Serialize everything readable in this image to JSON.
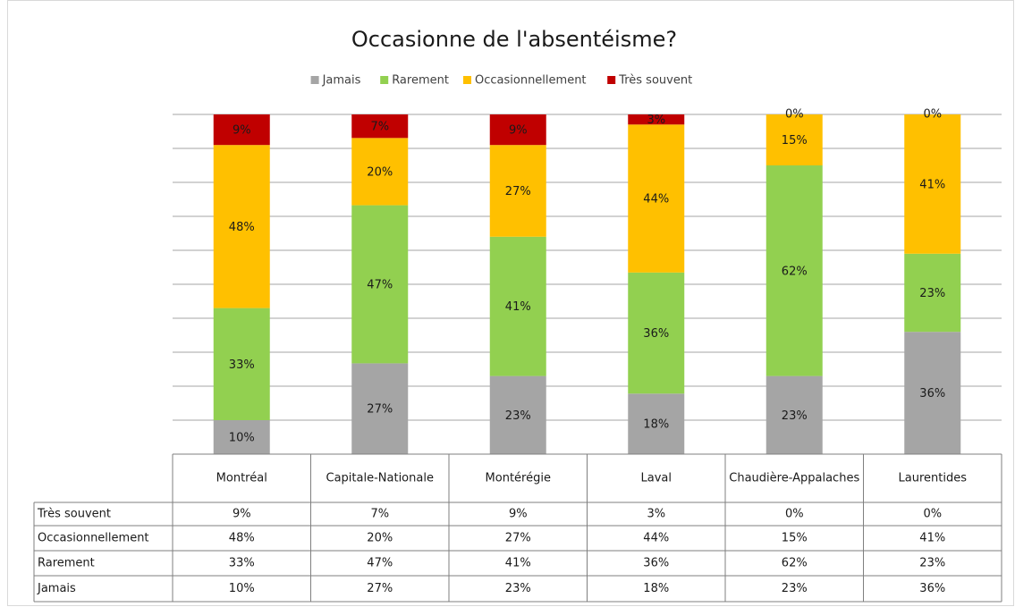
{
  "chart_data": {
    "type": "bar",
    "stacking": "percent",
    "title": "Occasionne de l'absentéisme?",
    "categories": [
      "Montréal",
      "Capitale-Nationale",
      "Montérégie",
      "Laval",
      "Chaudière-Appalaches",
      "Laurentides"
    ],
    "series": [
      {
        "name": "Jamais",
        "color": "#a5a5a5",
        "values": [
          10,
          27,
          23,
          18,
          23,
          36
        ],
        "value_labels": [
          "10%",
          "27%",
          "23%",
          "18%",
          "23%",
          "36%"
        ]
      },
      {
        "name": "Rarement",
        "color": "#92d050",
        "values": [
          33,
          47,
          41,
          36,
          62,
          23
        ],
        "value_labels": [
          "33%",
          "47%",
          "41%",
          "36%",
          "62%",
          "23%"
        ]
      },
      {
        "name": "Occasionnellement",
        "color": "#ffc000",
        "values": [
          48,
          20,
          27,
          44,
          15,
          41
        ],
        "value_labels": [
          "48%",
          "20%",
          "27%",
          "44%",
          "15%",
          "41%"
        ]
      },
      {
        "name": "Très souvent",
        "color": "#c00000",
        "values": [
          9,
          7,
          9,
          3,
          0,
          0
        ],
        "value_labels": [
          "9%",
          "7%",
          "9%",
          "3%",
          "0%",
          "0%"
        ]
      }
    ],
    "ylim": [
      0,
      100
    ],
    "yticks": [
      0,
      10,
      20,
      30,
      40,
      50,
      60,
      70,
      80,
      90,
      100
    ],
    "grid": true,
    "legend": "top",
    "data_table": true
  }
}
